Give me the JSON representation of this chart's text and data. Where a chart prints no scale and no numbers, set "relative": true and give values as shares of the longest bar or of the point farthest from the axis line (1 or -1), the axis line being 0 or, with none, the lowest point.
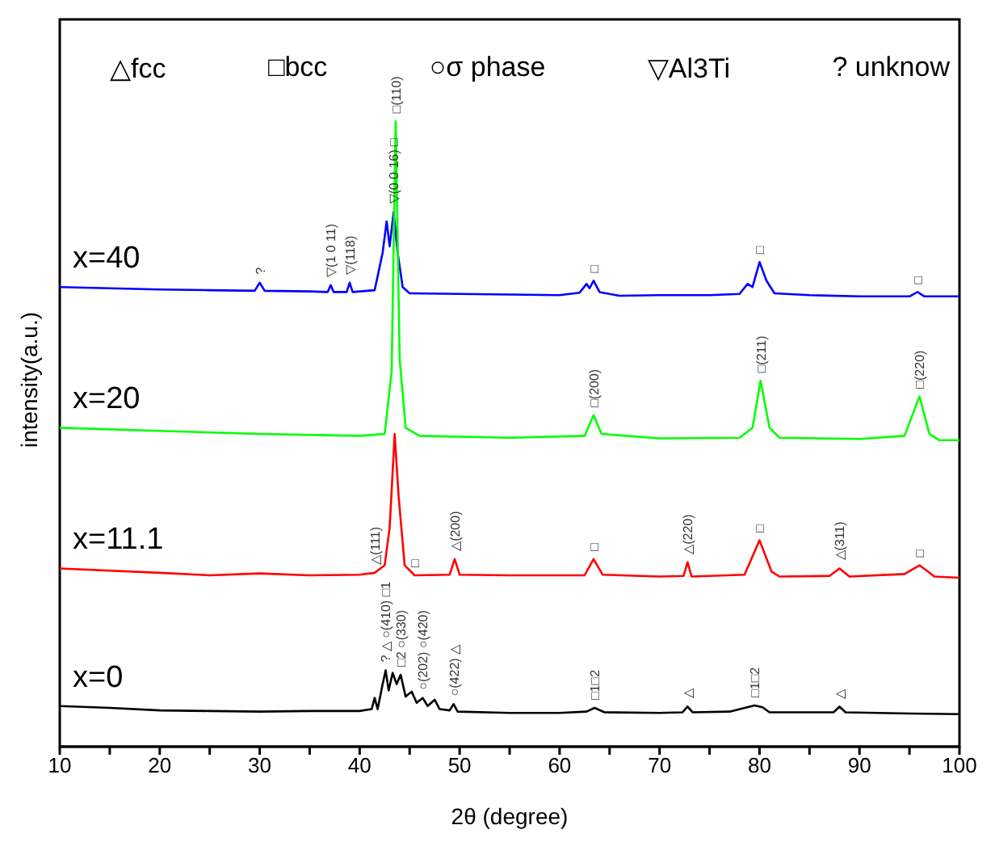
{
  "chart_data": {
    "type": "line",
    "relative": true,
    "xlabel": "2θ (degree)",
    "ylabel": "intensity(a.u.)",
    "xlim": [
      10,
      100
    ],
    "xticks": [
      10,
      {
        "value": 15,
        "label": null
      },
      20,
      {
        "value": 25,
        "label": null
      },
      30,
      {
        "value": 35,
        "label": null
      },
      40,
      {
        "value": 45,
        "label": null
      },
      50,
      {
        "value": 55,
        "label": null
      },
      60,
      {
        "value": 65,
        "label": null
      },
      70,
      {
        "value": 75,
        "label": null
      },
      80,
      {
        "value": 85,
        "label": null
      },
      90,
      {
        "value": 95,
        "label": null
      },
      100
    ],
    "legend": false,
    "grid": false,
    "marker": "none",
    "line_style": "solid",
    "series": [
      {
        "name": "x=40",
        "color": "#0000ff",
        "x": [
          10,
          15,
          20,
          25,
          29.5,
          30,
          30.5,
          35,
          36.8,
          37.1,
          37.4,
          38.7,
          39,
          39.3,
          41.5,
          42.3,
          42.7,
          43,
          43.4,
          43.8,
          44.3,
          45,
          50,
          55,
          60,
          62,
          62.7,
          63,
          63.4,
          64,
          66,
          70,
          75,
          78,
          78.8,
          79.3,
          80,
          80.7,
          81.5,
          85,
          90,
          95,
          95.8,
          96.5,
          100
        ],
        "values": [
          0.735,
          0.733,
          0.731,
          0.73,
          0.729,
          0.742,
          0.729,
          0.728,
          0.727,
          0.738,
          0.727,
          0.727,
          0.742,
          0.727,
          0.73,
          0.79,
          0.84,
          0.8,
          0.855,
          0.79,
          0.735,
          0.725,
          0.724,
          0.723,
          0.722,
          0.726,
          0.74,
          0.733,
          0.745,
          0.727,
          0.721,
          0.722,
          0.722,
          0.724,
          0.74,
          0.735,
          0.775,
          0.745,
          0.725,
          0.722,
          0.72,
          0.72,
          0.727,
          0.72,
          0.72
        ]
      },
      {
        "name": "x=20",
        "color": "#00ff00",
        "x": [
          10,
          20,
          30,
          40,
          42.5,
          43.2,
          43.6,
          44,
          44.6,
          46,
          55,
          62.5,
          63.4,
          64.2,
          70,
          78,
          79.3,
          80.1,
          81,
          82,
          90,
          94.5,
          96,
          97,
          98,
          100
        ],
        "values": [
          0.51,
          0.505,
          0.5,
          0.497,
          0.5,
          0.6,
          1.0,
          0.62,
          0.51,
          0.497,
          0.494,
          0.497,
          0.53,
          0.5,
          0.493,
          0.494,
          0.51,
          0.585,
          0.51,
          0.494,
          0.492,
          0.497,
          0.56,
          0.5,
          0.49,
          0.49
        ]
      },
      {
        "name": "x=11.1",
        "color": "#ff0000",
        "x": [
          10,
          20,
          25,
          30,
          35,
          40,
          41.5,
          42.5,
          43,
          43.5,
          43.9,
          44.5,
          45.5,
          49,
          49.5,
          50,
          55,
          62.5,
          63.4,
          64.3,
          70,
          72.4,
          72.8,
          73.2,
          78.5,
          80,
          81.2,
          82,
          87,
          88,
          89,
          94.5,
          96,
          97.5,
          100
        ],
        "values": [
          0.285,
          0.278,
          0.274,
          0.277,
          0.274,
          0.275,
          0.278,
          0.29,
          0.35,
          0.5,
          0.4,
          0.29,
          0.274,
          0.275,
          0.3,
          0.275,
          0.274,
          0.274,
          0.3,
          0.275,
          0.272,
          0.273,
          0.295,
          0.272,
          0.275,
          0.33,
          0.28,
          0.272,
          0.273,
          0.285,
          0.272,
          0.276,
          0.29,
          0.272,
          0.27
        ]
      },
      {
        "name": "x=0",
        "color": "#000000",
        "x": [
          10,
          15,
          20,
          25,
          30,
          35,
          40,
          41.2,
          41.5,
          41.8,
          42.3,
          42.6,
          42.9,
          43.3,
          43.7,
          44.1,
          44.6,
          45.2,
          45.7,
          46.3,
          46.8,
          47.5,
          48,
          49,
          49.4,
          49.8,
          55,
          60,
          62.7,
          63.5,
          64.5,
          70,
          72.3,
          72.8,
          73.3,
          77,
          79.5,
          80.3,
          81,
          87.4,
          88,
          88.6,
          95,
          100
        ],
        "values": [
          0.065,
          0.062,
          0.058,
          0.057,
          0.056,
          0.057,
          0.057,
          0.06,
          0.078,
          0.06,
          0.1,
          0.122,
          0.09,
          0.118,
          0.1,
          0.115,
          0.08,
          0.088,
          0.07,
          0.078,
          0.065,
          0.075,
          0.06,
          0.058,
          0.068,
          0.056,
          0.054,
          0.054,
          0.056,
          0.062,
          0.055,
          0.054,
          0.055,
          0.064,
          0.055,
          0.056,
          0.066,
          0.063,
          0.055,
          0.055,
          0.064,
          0.055,
          0.053,
          0.052
        ]
      }
    ],
    "annotations": [
      "△fcc",
      "□bcc",
      "○σ phase",
      "▽Al3Ti",
      "? unknow",
      {
        "text": "?",
        "x": 30,
        "y": 0.742
      },
      {
        "text": "▽(1 0 11)",
        "x": 37.1,
        "y": 0.738
      },
      {
        "text": "▽(118)",
        "x": 39,
        "y": 0.742
      },
      {
        "text": "▽(0 0 16) □",
        "x": 43.4,
        "y": 0.855
      },
      {
        "text": "□",
        "x": 63.4,
        "y": 0.745
      },
      {
        "text": "□",
        "x": 80,
        "y": 0.775
      },
      {
        "text": "□",
        "x": 95.8,
        "y": 0.727
      },
      {
        "text": "□(110)",
        "x": 43.6,
        "y": 1.0
      },
      {
        "text": "□(200)",
        "x": 63.4,
        "y": 0.53
      },
      {
        "text": "□(211)",
        "x": 80.1,
        "y": 0.585
      },
      {
        "text": "□(220)",
        "x": 96,
        "y": 0.56
      },
      {
        "text": "△(111)",
        "x": 41.5,
        "y": 0.278
      },
      {
        "text": "□",
        "x": 45.5,
        "y": 0.274
      },
      {
        "text": "△(200)",
        "x": 49.5,
        "y": 0.3
      },
      {
        "text": "□",
        "x": 63.4,
        "y": 0.3
      },
      {
        "text": "△(220)",
        "x": 72.8,
        "y": 0.295
      },
      {
        "text": "□",
        "x": 80,
        "y": 0.33
      },
      {
        "text": "△(311)",
        "x": 88,
        "y": 0.285
      },
      {
        "text": "□",
        "x": 96,
        "y": 0.29
      },
      {
        "text": "? △ ○(410) □1",
        "x": 42.6,
        "y": 0.122
      },
      {
        "text": "□2 ○(330)",
        "x": 44.1,
        "y": 0.115
      },
      {
        "text": "○(202) ○(420)",
        "x": 46.3,
        "y": 0.078
      },
      {
        "text": "○(422) △",
        "x": 49.4,
        "y": 0.068
      },
      {
        "text": "□1□2",
        "x": 63.5,
        "y": 0.062
      },
      {
        "text": "△",
        "x": 72.8,
        "y": 0.064
      },
      {
        "text": "□1□2",
        "x": 79.5,
        "y": 0.066
      },
      {
        "text": "△",
        "x": 88,
        "y": 0.064
      }
    ]
  }
}
